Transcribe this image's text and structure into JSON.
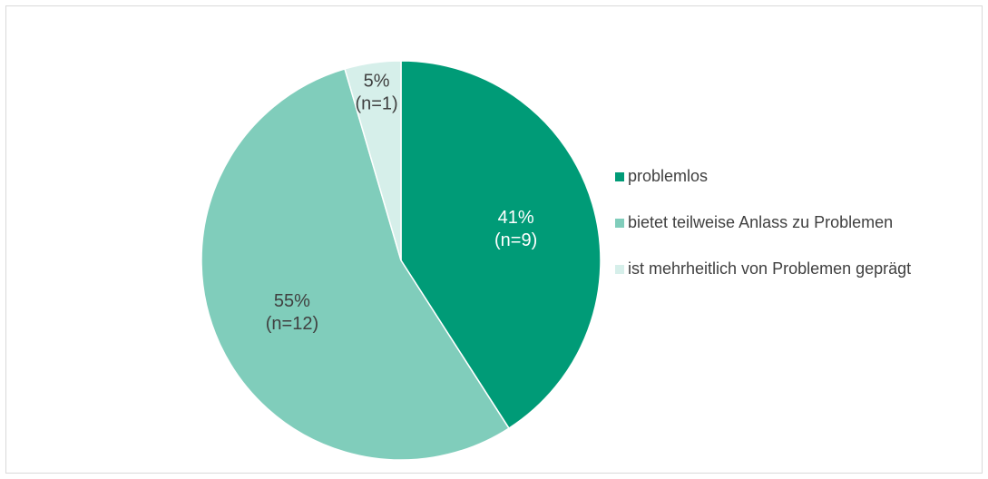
{
  "chart_data": {
    "type": "pie",
    "title": "",
    "categories": [
      "problemlos",
      "bietet teilweise Anlass zu Problemen",
      "ist mehrheitlich von Problemen geprägt"
    ],
    "values": [
      9,
      12,
      1
    ],
    "percent_labels": [
      "41%",
      "55%",
      "5%"
    ],
    "count_labels": [
      "(n=9)",
      "(n=12)",
      "(n=1)"
    ],
    "colors": [
      "#009b77",
      "#80cdbb",
      "#d6efea"
    ],
    "label_colors": [
      "#ffffff",
      "#404040",
      "#404040"
    ],
    "start_angle": "12 o'clock",
    "direction": "clockwise",
    "legend_position": "right"
  }
}
